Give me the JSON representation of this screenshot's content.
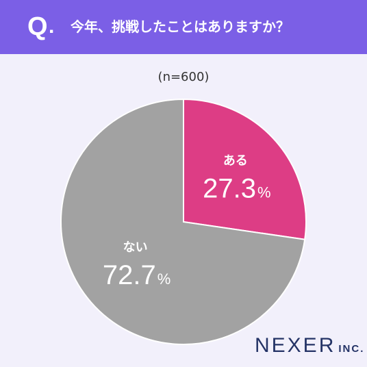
{
  "header": {
    "q_letter": "Q",
    "q_dot": ".",
    "question": "今年、挑戦したことはありますか？"
  },
  "sample_label": "(n=600)",
  "logo": {
    "main": "NEXER",
    "suffix": "INC."
  },
  "colors": {
    "header": "#7b5fe6",
    "background": "#f2f0fb",
    "slice_yes": "#dd3d85",
    "slice_no": "#a2a2a2",
    "logo": "#243366"
  },
  "chart_data": {
    "type": "pie",
    "title": "今年、挑戦したことはありますか？",
    "categories": [
      "ある",
      "ない"
    ],
    "values": [
      27.3,
      72.7
    ],
    "value_labels": [
      "27.3",
      "72.7"
    ],
    "unit": "%",
    "colors": [
      "#dd3d85",
      "#a2a2a2"
    ]
  }
}
